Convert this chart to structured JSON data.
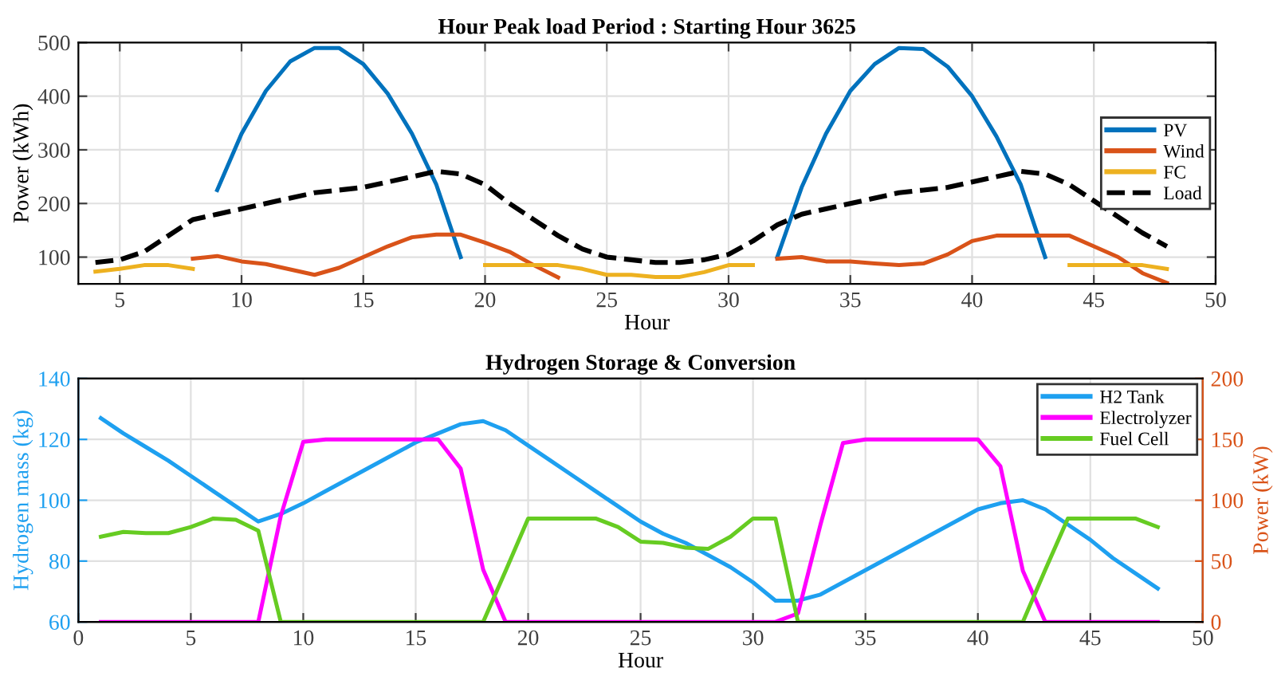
{
  "chart_data": [
    {
      "type": "line",
      "title": "Hour Peak load Period : Starting Hour 3625",
      "xlabel": "Hour",
      "ylabel": "Power (kWh)",
      "x": [
        4,
        5,
        6,
        7,
        8,
        9,
        10,
        11,
        12,
        13,
        14,
        15,
        16,
        17,
        18,
        19,
        20,
        21,
        22,
        23,
        24,
        25,
        26,
        27,
        28,
        29,
        30,
        31,
        32,
        33,
        34,
        35,
        36,
        37,
        38,
        39,
        40,
        41,
        42,
        43,
        44,
        45,
        46,
        47,
        48
      ],
      "xlim": [
        3.3,
        50
      ],
      "ylim": [
        50,
        500
      ],
      "xticks": [
        5,
        10,
        15,
        20,
        25,
        30,
        35,
        40,
        45,
        50
      ],
      "yticks": [
        100,
        200,
        300,
        400,
        500
      ],
      "grid": true,
      "legend": "right",
      "line_style": "solid",
      "marker": "none",
      "series": [
        {
          "name": "PV",
          "color": "#0072bd",
          "values": [
            null,
            null,
            null,
            null,
            null,
            225,
            330,
            410,
            465,
            490,
            490,
            460,
            405,
            330,
            235,
            100,
            null,
            null,
            null,
            null,
            null,
            null,
            null,
            null,
            null,
            null,
            null,
            null,
            100,
            230,
            330,
            410,
            460,
            490,
            488,
            455,
            400,
            325,
            235,
            100,
            null,
            null,
            null,
            null,
            null
          ]
        },
        {
          "name": "Wind",
          "color": "#d95319",
          "values": [
            null,
            null,
            null,
            null,
            97,
            102,
            92,
            87,
            77,
            67,
            80,
            100,
            120,
            137,
            142,
            142,
            127,
            110,
            85,
            62,
            null,
            null,
            null,
            null,
            null,
            null,
            null,
            null,
            97,
            100,
            92,
            92,
            88,
            85,
            88,
            105,
            130,
            140,
            140,
            140,
            140,
            120,
            100,
            70,
            52
          ]
        },
        {
          "name": "FC",
          "color": "#edb120",
          "values": [
            73,
            78,
            85,
            85,
            78,
            null,
            null,
            null,
            null,
            null,
            null,
            null,
            null,
            null,
            null,
            null,
            85,
            85,
            85,
            85,
            78,
            67,
            67,
            63,
            63,
            72,
            85,
            85,
            null,
            null,
            null,
            null,
            null,
            null,
            null,
            null,
            null,
            null,
            null,
            null,
            85,
            85,
            85,
            85,
            78
          ]
        },
        {
          "name": "Load",
          "color": "#000000",
          "line_style": "dashed",
          "values": [
            90,
            95,
            110,
            140,
            170,
            180,
            190,
            200,
            210,
            220,
            225,
            230,
            240,
            250,
            260,
            255,
            235,
            200,
            170,
            140,
            115,
            100,
            95,
            90,
            90,
            95,
            105,
            130,
            160,
            180,
            190,
            200,
            210,
            220,
            225,
            230,
            240,
            250,
            260,
            255,
            235,
            205,
            175,
            145,
            120
          ]
        }
      ]
    },
    {
      "type": "line",
      "title": "Hydrogen Storage & Conversion",
      "xlabel": "Hour",
      "ylabel": "Hydrogen mass (kg)",
      "y2label": "Power (kW)",
      "x": [
        1,
        2,
        3,
        4,
        5,
        6,
        7,
        8,
        9,
        10,
        11,
        12,
        13,
        14,
        15,
        16,
        17,
        18,
        19,
        20,
        21,
        22,
        23,
        24,
        25,
        26,
        27,
        28,
        29,
        30,
        31,
        32,
        33,
        34,
        35,
        36,
        37,
        38,
        39,
        40,
        41,
        42,
        43,
        44,
        45,
        46,
        47,
        48
      ],
      "xlim": [
        0,
        50
      ],
      "ylim": [
        60,
        140
      ],
      "y2lim": [
        0,
        200
      ],
      "xticks": [
        0,
        5,
        10,
        15,
        20,
        25,
        30,
        35,
        40,
        45,
        50
      ],
      "yticks": [
        60,
        80,
        100,
        120,
        140
      ],
      "y2ticks": [
        0,
        50,
        100,
        150,
        200
      ],
      "grid": true,
      "legend": "top right",
      "line_style": "solid",
      "marker": "none",
      "series": [
        {
          "name": "H2 Tank",
          "color": "#1ea0f0",
          "values": [
            127,
            122,
            117.5,
            113,
            108,
            103,
            98,
            93,
            95.5,
            99,
            103,
            107,
            111,
            115,
            119,
            122,
            125,
            126,
            123,
            118,
            113,
            108,
            103,
            98,
            93,
            89,
            86,
            82,
            78,
            73,
            67,
            67,
            69,
            73,
            77,
            81,
            85,
            89,
            93,
            97,
            99,
            100,
            97,
            92,
            87,
            81,
            76,
            71
          ]
        },
        {
          "name": "Electrolyzer",
          "color": "#ff00ff",
          "axis": "y2",
          "values": [
            0,
            0,
            0,
            0,
            0,
            0,
            0,
            0,
            87,
            148,
            150,
            150,
            150,
            150,
            150,
            150,
            126,
            43,
            0,
            0,
            0,
            0,
            0,
            0,
            0,
            0,
            0,
            0,
            0,
            0,
            0,
            7,
            80,
            147,
            150,
            150,
            150,
            150,
            150,
            150,
            128,
            42,
            0,
            0,
            0,
            0,
            0,
            0
          ]
        },
        {
          "name": "Fuel Cell",
          "color": "#66cc22",
          "axis": "y2",
          "values": [
            70,
            74,
            73,
            73,
            78,
            85,
            84,
            75,
            0,
            0,
            0,
            0,
            0,
            0,
            0,
            0,
            0,
            0,
            42,
            85,
            85,
            85,
            85,
            78,
            66,
            65,
            61,
            60,
            70,
            85,
            85,
            0,
            0,
            0,
            0,
            0,
            0,
            0,
            0,
            0,
            0,
            0,
            43,
            85,
            85,
            85,
            85,
            78
          ]
        }
      ]
    }
  ]
}
